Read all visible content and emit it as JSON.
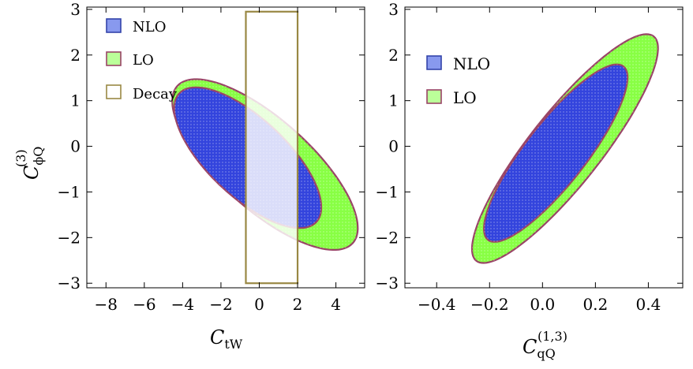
{
  "chart_data": [
    {
      "type": "contour",
      "panel": "left",
      "xlabel_main": "C",
      "xlabel_sub": "tW",
      "ylabel_main": "C",
      "ylabel_sub": "ϕQ",
      "ylabel_sup": "(3)",
      "xlim": [
        -9,
        5.5
      ],
      "ylim": [
        -3.1,
        3.05
      ],
      "xticks": [
        -8,
        -6,
        -4,
        -2,
        0,
        2,
        4
      ],
      "xtick_labels": [
        "−8",
        "−6",
        "−4",
        "−2",
        "0",
        "2",
        "4"
      ],
      "yticks": [
        -3,
        -2,
        -1,
        0,
        1,
        2,
        3
      ],
      "ytick_labels": [
        "−3",
        "−2",
        "−1",
        "0",
        "1",
        "2",
        "3"
      ],
      "legend": [
        {
          "label": "NLO",
          "fill": "#8899ee",
          "stroke": "#3344aa"
        },
        {
          "label": "LO",
          "fill": "#bbff99",
          "stroke": "#994466"
        },
        {
          "label": "Decay",
          "fill": "#ffffff",
          "stroke": "#998844"
        }
      ],
      "regions": [
        {
          "name": "LO",
          "type": "ellipse",
          "center": [
            0.3,
            -0.4
          ],
          "semi_axes": [
            5.05,
            1.2
          ],
          "angle_deg": -17,
          "fill": "#88ff44",
          "stroke": "#994466"
        },
        {
          "name": "NLO",
          "type": "ellipse",
          "center": [
            -0.6,
            -0.25
          ],
          "semi_axes": [
            4.0,
            1.05
          ],
          "angle_deg": -17,
          "fill": "#3344dd",
          "stroke": "#994466"
        },
        {
          "name": "Decay",
          "type": "box",
          "x_range": [
            -0.7,
            2.0
          ],
          "y_range": [
            -3.0,
            2.95
          ],
          "stroke": "#998844"
        }
      ]
    },
    {
      "type": "contour",
      "panel": "right",
      "xlabel_main": "C",
      "xlabel_sub": "qQ",
      "xlabel_sup": "(1,3)",
      "xlim": [
        -0.52,
        0.53
      ],
      "ylim": [
        -3.1,
        3.05
      ],
      "xticks": [
        -0.4,
        -0.2,
        0.0,
        0.2,
        0.4
      ],
      "xtick_labels": [
        "−0.4",
        "−0.2",
        "0.0",
        "0.2",
        "0.4"
      ],
      "yticks": [
        -3,
        -2,
        -1,
        0,
        1,
        2,
        3
      ],
      "ytick_labels": [
        "−3",
        "−2",
        "−1",
        "0",
        "1",
        "2",
        "3"
      ],
      "legend": [
        {
          "label": "NLO",
          "fill": "#8899ee",
          "stroke": "#3344aa"
        },
        {
          "label": "LO",
          "fill": "#bbff99",
          "stroke": "#994466"
        }
      ],
      "regions": [
        {
          "name": "LO",
          "type": "ellipse_data",
          "center": [
            0.085,
            -0.05
          ],
          "major_dir": [
            0.35,
            2.3
          ],
          "major_len": 1.0,
          "minor_len": 0.165,
          "fill": "#88ff44",
          "stroke": "#994466"
        },
        {
          "name": "NLO",
          "type": "ellipse_data",
          "center": [
            0.05,
            -0.15
          ],
          "major_dir": [
            0.27,
            1.75
          ],
          "major_len": 1.0,
          "minor_len": 0.14,
          "fill": "#3344dd",
          "stroke": "#994466"
        }
      ]
    }
  ]
}
